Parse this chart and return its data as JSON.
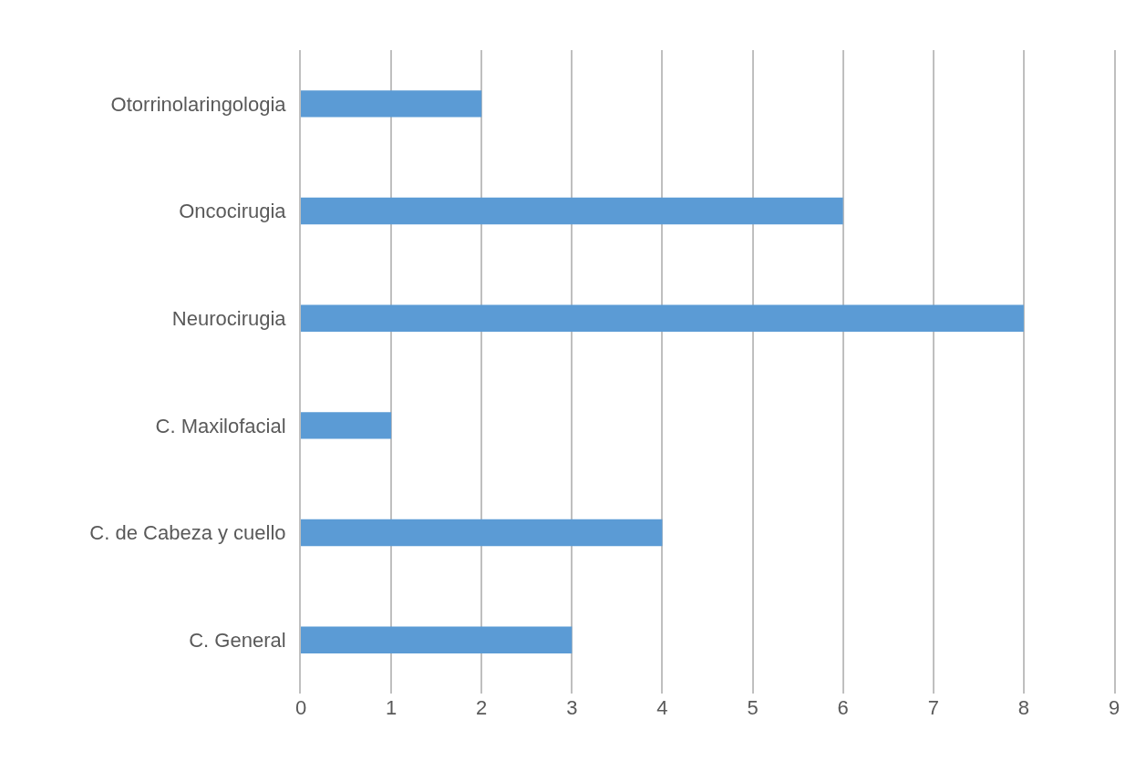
{
  "chart_data": {
    "type": "bar",
    "orientation": "horizontal",
    "categories": [
      "Otorrinolaringologia",
      "Oncocirugia",
      "Neurocirugia",
      "C. Maxilofacial",
      "C. de Cabeza y cuello",
      "C. General"
    ],
    "values": [
      2,
      6,
      8,
      1,
      4,
      3
    ],
    "color": "#5b9bd5",
    "xlim": [
      0,
      9
    ],
    "xticks": [
      0,
      1,
      2,
      3,
      4,
      5,
      6,
      7,
      8,
      9
    ],
    "grid": "x"
  }
}
